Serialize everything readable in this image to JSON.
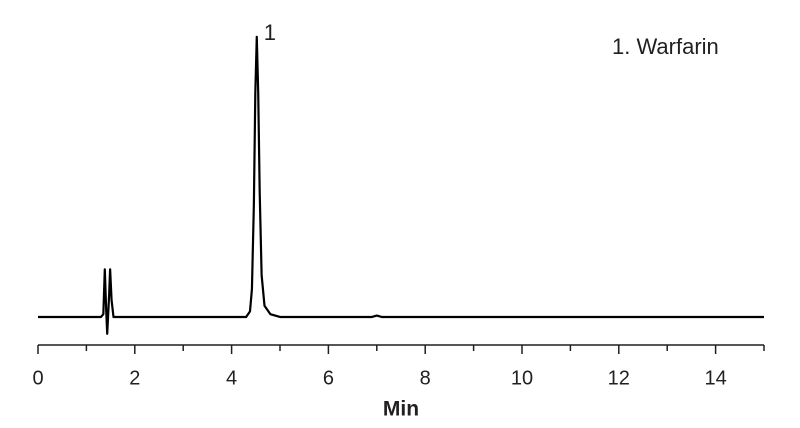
{
  "chart_data": {
    "type": "line",
    "x_label": "Min",
    "legend_text": "1. Warfarin",
    "annotations": [
      {
        "text": "1",
        "x": 4.52
      }
    ],
    "xlim": [
      0,
      15
    ],
    "xticks": [
      0,
      2,
      4,
      6,
      8,
      10,
      12,
      14
    ],
    "minor_xticks": [
      1,
      3,
      5,
      7,
      9,
      11,
      13,
      15
    ],
    "ylim": [
      -10,
      106
    ],
    "color": "#000000",
    "x": [
      0,
      1.3,
      1.35,
      1.38,
      1.41,
      1.43,
      1.45,
      1.47,
      1.49,
      1.52,
      1.56,
      1.65,
      4.3,
      4.38,
      4.42,
      4.46,
      4.49,
      4.52,
      4.55,
      4.58,
      4.62,
      4.68,
      4.8,
      5.0,
      6.9,
      7.0,
      7.1,
      15.0
    ],
    "values": [
      0,
      0,
      1,
      17,
      2,
      -6,
      1,
      8,
      17,
      6,
      0,
      0,
      0,
      2,
      10,
      40,
      80,
      100,
      80,
      45,
      15,
      4,
      1,
      0,
      0,
      0.5,
      0,
      0
    ]
  }
}
